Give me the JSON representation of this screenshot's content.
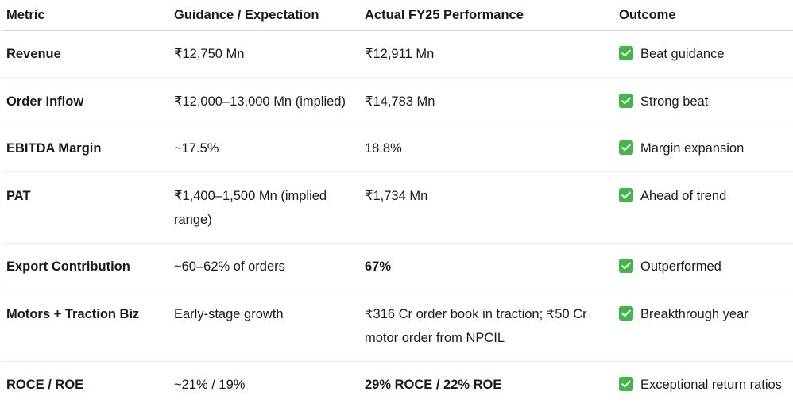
{
  "table": {
    "headers": [
      "Metric",
      "Guidance / Expectation",
      "Actual FY25 Performance",
      "Outcome"
    ],
    "rows": [
      {
        "metric": "Revenue",
        "guidance": "₹12,750 Mn",
        "actual": "₹12,911 Mn",
        "outcome": "Beat guidance",
        "icon": "check-mark-icon"
      },
      {
        "metric": "Order Inflow",
        "guidance": "₹12,000–13,000 Mn (implied)",
        "actual": "₹14,783 Mn",
        "outcome": "Strong beat",
        "icon": "check-mark-icon"
      },
      {
        "metric": "EBITDA Margin",
        "guidance": "~17.5%",
        "actual": "18.8%",
        "outcome": "Margin expansion",
        "icon": "check-mark-icon"
      },
      {
        "metric": "PAT",
        "guidance": "₹1,400–1,500 Mn (implied range)",
        "actual": "₹1,734 Mn",
        "outcome": "Ahead of trend",
        "icon": "check-mark-icon"
      },
      {
        "metric": "Export Contribution",
        "guidance": "~60–62% of orders",
        "actual": "67%",
        "outcome": "Outperformed",
        "icon": "check-mark-icon"
      },
      {
        "metric": "Motors + Traction Biz",
        "guidance": "Early-stage growth",
        "actual": "₹316 Cr order book in traction; ₹50 Cr motor order from NPCIL",
        "outcome": "Breakthrough year",
        "icon": "check-mark-icon"
      },
      {
        "metric": "ROCE / ROE",
        "guidance": "~21% / 19%",
        "actual": "29% ROCE / 22% ROE",
        "outcome": "Exceptional return ratios",
        "icon": "check-mark-icon"
      }
    ]
  },
  "colors": {
    "check_icon_bg": "#43b54a",
    "text": "#1a1a1a",
    "header_rule": "#d6d6d6",
    "row_rule": "#ececec"
  }
}
